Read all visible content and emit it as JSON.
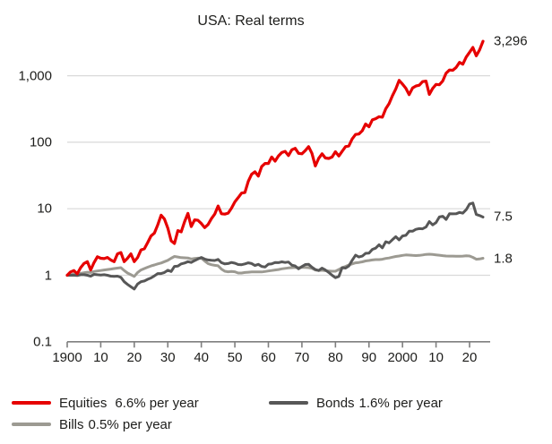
{
  "title": "USA: Real terms",
  "colors": {
    "equities": "#e60000",
    "bonds": "#575757",
    "bills": "#9c9a92",
    "gridline": "#d9d9d9",
    "axis": "#7f7f7f",
    "text": "#1d1d1b"
  },
  "end_labels": [
    {
      "text": "3,296",
      "value": 3296
    },
    {
      "text": "7.5",
      "value": 7.5
    },
    {
      "text": "1.8",
      "value": 1.8
    }
  ],
  "legend": [
    {
      "name": "Equities",
      "rate": "6.6% per year",
      "series": "equities"
    },
    {
      "name": "Bonds",
      "rate": "1.6% per year",
      "series": "bonds"
    },
    {
      "name": "Bills",
      "rate": "0.5% per year",
      "series": "bills"
    }
  ],
  "chart_data": {
    "type": "line",
    "title": "USA: Real terms",
    "y_scale": "log",
    "ylim": [
      0.1,
      10000
    ],
    "x_start": 1900,
    "x_end": 2024,
    "grid": true,
    "grid_values": [
      1,
      10,
      100,
      1000
    ],
    "y_ticks": [
      {
        "label": "1,000",
        "value": 1000
      },
      {
        "label": "100",
        "value": 100
      },
      {
        "label": "10",
        "value": 10
      },
      {
        "label": "1",
        "value": 1
      },
      {
        "label": "0.1",
        "value": 0.1
      }
    ],
    "x_ticks": [
      {
        "label": "1900",
        "year": 1900
      },
      {
        "label": "10",
        "year": 1910
      },
      {
        "label": "20",
        "year": 1920
      },
      {
        "label": "30",
        "year": 1930
      },
      {
        "label": "40",
        "year": 1940
      },
      {
        "label": "50",
        "year": 1950
      },
      {
        "label": "60",
        "year": 1960
      },
      {
        "label": "70",
        "year": 1970
      },
      {
        "label": "80",
        "year": 1980
      },
      {
        "label": "90",
        "year": 1990
      },
      {
        "label": "2000",
        "year": 2000
      },
      {
        "label": "10",
        "year": 2010
      },
      {
        "label": "20",
        "year": 2020
      }
    ],
    "series": [
      {
        "name": "Equities",
        "rate_label": "6.6% per year",
        "end_value": 3296,
        "color_key": "equities",
        "annual_values": [
          1.0,
          1.12,
          1.18,
          1.05,
          1.3,
          1.5,
          1.6,
          1.2,
          1.55,
          1.9,
          1.8,
          1.78,
          1.85,
          1.7,
          1.6,
          2.1,
          2.2,
          1.6,
          1.8,
          2.1,
          1.6,
          1.85,
          2.4,
          2.5,
          3.1,
          3.9,
          4.3,
          5.7,
          8.0,
          7.0,
          5.1,
          3.3,
          3.0,
          4.7,
          4.5,
          6.4,
          8.5,
          5.4,
          6.8,
          6.7,
          6.0,
          5.2,
          5.8,
          7.1,
          8.3,
          11.0,
          8.4,
          8.3,
          8.6,
          10.2,
          12.7,
          14.7,
          17.2,
          17.5,
          26.0,
          33.0,
          36.0,
          31.0,
          43.0,
          48.0,
          48.0,
          60.0,
          52.0,
          62.0,
          70.0,
          73.0,
          63.0,
          77.0,
          81.0,
          68.0,
          67.0,
          75.0,
          86.0,
          68.0,
          44.0,
          57.0,
          67.0,
          58.0,
          57.0,
          60.0,
          72.0,
          62.0,
          73.0,
          86.0,
          88.0,
          112.0,
          131.0,
          133.0,
          149.0,
          188.0,
          171.0,
          217.0,
          226.0,
          242.0,
          238.0,
          319.0,
          380.0,
          499.0,
          634.0,
          850.0,
          747.0,
          649.0,
          520.0,
          655.0,
          700.0,
          721.0,
          816.0,
          830.0,
          523.0,
          643.0,
          740.0,
          732.0,
          835.0,
          1090.0,
          1221.0,
          1209.0,
          1330.0,
          1588.0,
          1490.0,
          1910.0,
          2250.0,
          2660.0,
          1990.0,
          2450.0,
          3296.0
        ]
      },
      {
        "name": "Bonds",
        "rate_label": "1.6% per year",
        "end_value": 7.5,
        "color_key": "bonds",
        "annual_values": [
          1.0,
          1.0,
          1.0,
          0.99,
          1.02,
          1.02,
          1.0,
          0.97,
          1.03,
          1.02,
          1.01,
          1.02,
          1.0,
          0.97,
          0.96,
          0.97,
          0.93,
          0.8,
          0.73,
          0.67,
          0.62,
          0.74,
          0.8,
          0.82,
          0.87,
          0.91,
          0.98,
          1.06,
          1.06,
          1.1,
          1.19,
          1.14,
          1.36,
          1.37,
          1.48,
          1.53,
          1.6,
          1.56,
          1.66,
          1.76,
          1.85,
          1.75,
          1.7,
          1.68,
          1.67,
          1.73,
          1.55,
          1.48,
          1.5,
          1.56,
          1.52,
          1.45,
          1.44,
          1.48,
          1.54,
          1.5,
          1.4,
          1.46,
          1.36,
          1.33,
          1.47,
          1.48,
          1.56,
          1.55,
          1.59,
          1.56,
          1.58,
          1.42,
          1.38,
          1.25,
          1.35,
          1.45,
          1.46,
          1.32,
          1.22,
          1.18,
          1.28,
          1.2,
          1.1,
          1.0,
          0.92,
          0.96,
          1.3,
          1.28,
          1.38,
          1.68,
          2.0,
          1.88,
          1.94,
          2.14,
          2.16,
          2.45,
          2.56,
          2.88,
          2.58,
          3.2,
          3.07,
          3.42,
          3.8,
          3.4,
          3.9,
          3.98,
          4.6,
          4.59,
          4.9,
          5.02,
          5.0,
          5.32,
          6.42,
          5.72,
          6.2,
          7.52,
          7.7,
          6.9,
          8.4,
          8.38,
          8.4,
          8.8,
          8.6,
          9.7,
          11.8,
          12.2,
          8.2,
          7.9,
          7.5
        ]
      },
      {
        "name": "Bills",
        "rate_label": "0.5% per year",
        "end_value": 1.8,
        "color_key": "bills",
        "annual_values": [
          1.0,
          1.02,
          1.04,
          1.05,
          1.07,
          1.09,
          1.11,
          1.1,
          1.14,
          1.16,
          1.18,
          1.2,
          1.22,
          1.24,
          1.26,
          1.28,
          1.3,
          1.18,
          1.08,
          1.02,
          0.96,
          1.1,
          1.2,
          1.26,
          1.32,
          1.38,
          1.43,
          1.48,
          1.53,
          1.6,
          1.68,
          1.8,
          1.92,
          1.88,
          1.84,
          1.83,
          1.82,
          1.76,
          1.79,
          1.81,
          1.8,
          1.64,
          1.5,
          1.44,
          1.41,
          1.39,
          1.24,
          1.15,
          1.13,
          1.14,
          1.13,
          1.08,
          1.08,
          1.1,
          1.11,
          1.12,
          1.12,
          1.12,
          1.12,
          1.14,
          1.16,
          1.18,
          1.2,
          1.22,
          1.25,
          1.27,
          1.29,
          1.3,
          1.31,
          1.3,
          1.31,
          1.31,
          1.3,
          1.27,
          1.2,
          1.18,
          1.19,
          1.17,
          1.16,
          1.15,
          1.15,
          1.22,
          1.3,
          1.36,
          1.43,
          1.48,
          1.54,
          1.56,
          1.59,
          1.64,
          1.67,
          1.7,
          1.72,
          1.72,
          1.74,
          1.79,
          1.82,
          1.87,
          1.92,
          1.95,
          1.99,
          2.02,
          2.01,
          1.99,
          1.98,
          1.99,
          2.02,
          2.06,
          2.07,
          2.05,
          2.03,
          2.0,
          1.97,
          1.95,
          1.94,
          1.94,
          1.93,
          1.93,
          1.94,
          1.96,
          1.95,
          1.86,
          1.74,
          1.76,
          1.8
        ]
      }
    ]
  }
}
